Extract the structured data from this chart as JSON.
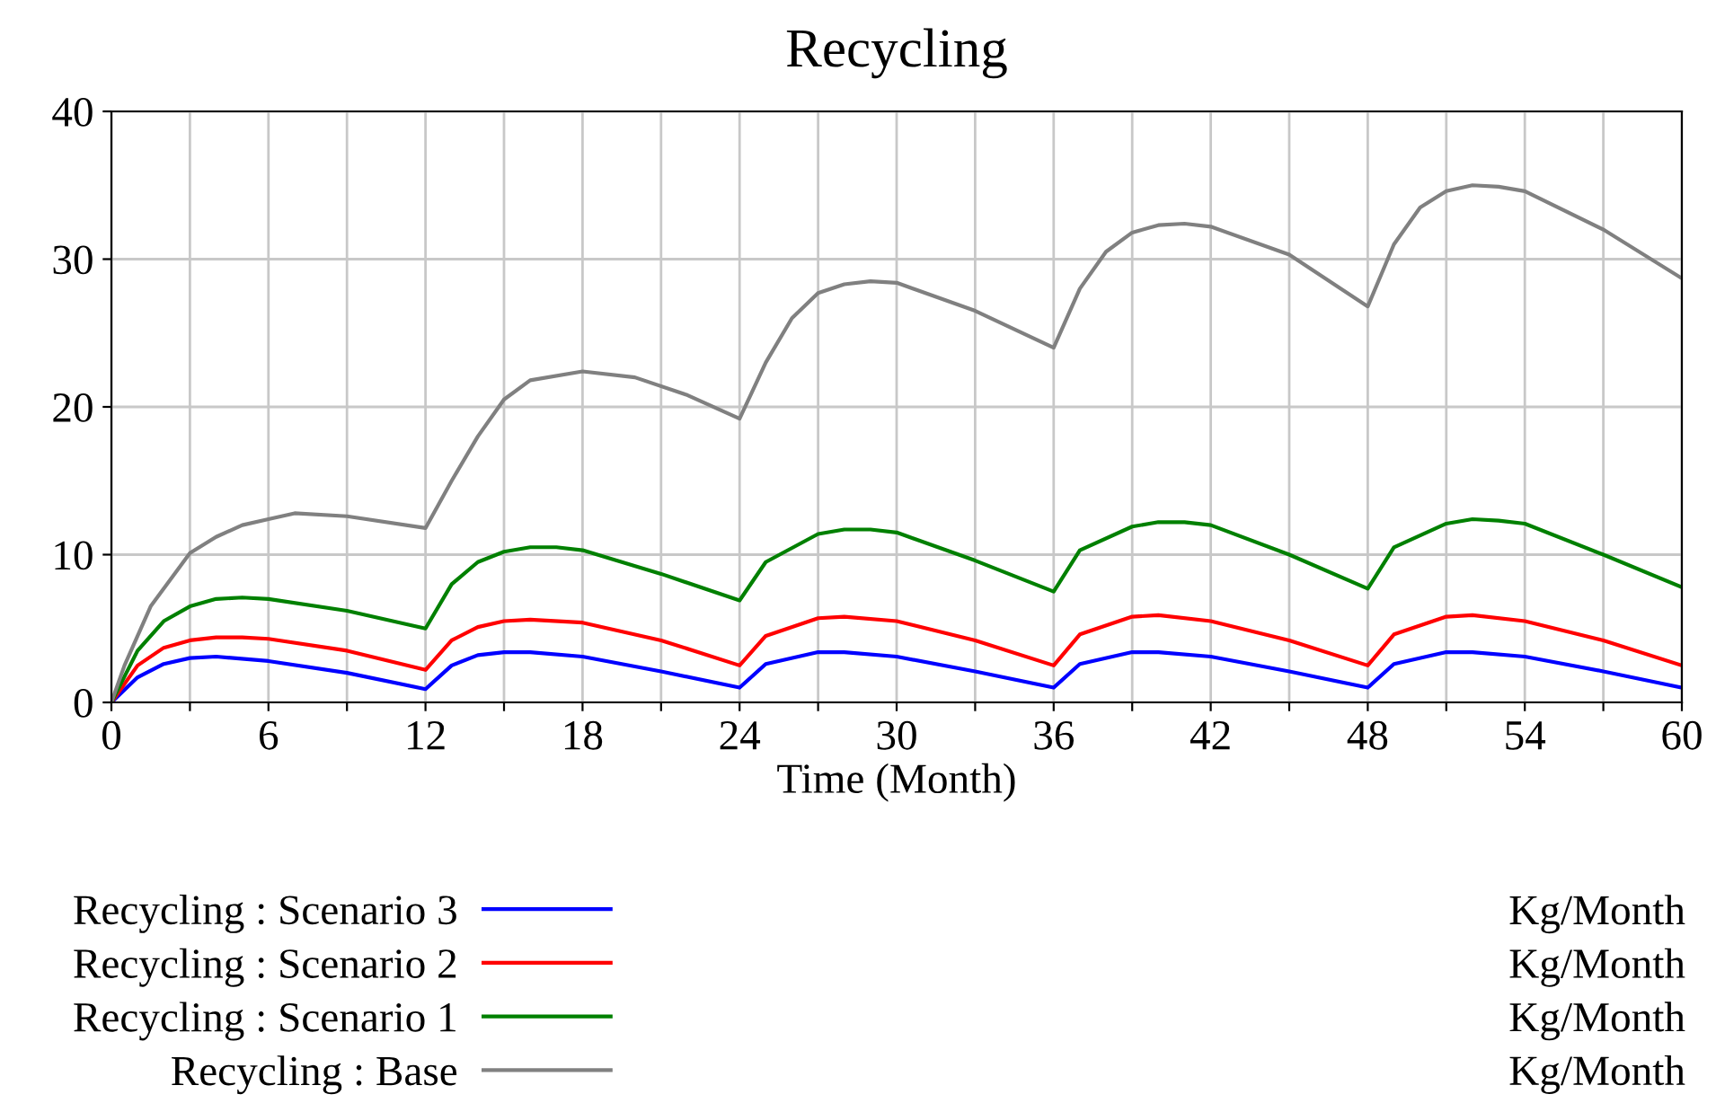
{
  "chart_data": {
    "type": "line",
    "title": "Recycling",
    "xlabel": "Time (Month)",
    "xlim": [
      0,
      60
    ],
    "ylim": [
      0,
      40
    ],
    "xticks": [
      0,
      {
        "value": 3,
        "label": null
      },
      6,
      {
        "value": 9,
        "label": null
      },
      12,
      {
        "value": 15,
        "label": null
      },
      18,
      {
        "value": 21,
        "label": null
      },
      24,
      {
        "value": 27,
        "label": null
      },
      30,
      {
        "value": 33,
        "label": null
      },
      36,
      {
        "value": 39,
        "label": null
      },
      42,
      {
        "value": 45,
        "label": null
      },
      48,
      {
        "value": 51,
        "label": null
      },
      54,
      {
        "value": 57,
        "label": null
      },
      60
    ],
    "yticks": [
      0,
      10,
      20,
      30,
      40
    ],
    "grid": true,
    "legend": "bottom",
    "marker": "none",
    "line_style": "solid",
    "annotations": [
      "Kg/Month",
      "Kg/Month",
      "Kg/Month",
      "Kg/Month"
    ],
    "series": [
      {
        "name": "Recycling : Scenario 3",
        "color": "#0000ff",
        "x": [
          0,
          1,
          2,
          3,
          4,
          6,
          9,
          12,
          13,
          14,
          15,
          16,
          18,
          21,
          24,
          25,
          27,
          28,
          30,
          33,
          36,
          37,
          39,
          40,
          42,
          45,
          48,
          49,
          51,
          52,
          54,
          57,
          60
        ],
        "values": [
          0,
          1.7,
          2.6,
          3.0,
          3.1,
          2.8,
          2.0,
          0.9,
          2.5,
          3.2,
          3.4,
          3.4,
          3.1,
          2.1,
          1.0,
          2.6,
          3.4,
          3.4,
          3.1,
          2.1,
          1.0,
          2.6,
          3.4,
          3.4,
          3.1,
          2.1,
          1.0,
          2.6,
          3.4,
          3.4,
          3.1,
          2.1,
          1.0
        ]
      },
      {
        "name": "Recycling : Scenario 2",
        "color": "#ff0000",
        "x": [
          0,
          1,
          2,
          3,
          4,
          5,
          6,
          9,
          12,
          13,
          14,
          15,
          16,
          18,
          21,
          24,
          25,
          27,
          28,
          30,
          33,
          36,
          37,
          39,
          40,
          42,
          45,
          48,
          49,
          51,
          52,
          54,
          57,
          60
        ],
        "values": [
          0,
          2.5,
          3.7,
          4.2,
          4.4,
          4.4,
          4.3,
          3.5,
          2.2,
          4.2,
          5.1,
          5.5,
          5.6,
          5.4,
          4.2,
          2.5,
          4.5,
          5.7,
          5.8,
          5.5,
          4.2,
          2.5,
          4.6,
          5.8,
          5.9,
          5.5,
          4.2,
          2.5,
          4.6,
          5.8,
          5.9,
          5.5,
          4.2,
          2.5
        ]
      },
      {
        "name": "Recycling : Scenario 1",
        "color": "#008000",
        "x": [
          0,
          1,
          2,
          3,
          4,
          5,
          6,
          9,
          12,
          13,
          14,
          15,
          16,
          17,
          18,
          21,
          24,
          25,
          27,
          28,
          29,
          30,
          33,
          36,
          37,
          39,
          40,
          41,
          42,
          45,
          48,
          49,
          51,
          52,
          53,
          54,
          57,
          60
        ],
        "values": [
          0,
          3.5,
          5.5,
          6.5,
          7.0,
          7.1,
          7.0,
          6.2,
          5.0,
          8.0,
          9.5,
          10.2,
          10.5,
          10.5,
          10.3,
          8.7,
          6.9,
          9.5,
          11.4,
          11.7,
          11.7,
          11.5,
          9.6,
          7.5,
          10.3,
          11.9,
          12.2,
          12.2,
          12.0,
          10.0,
          7.7,
          10.5,
          12.1,
          12.4,
          12.3,
          12.1,
          10.0,
          7.8
        ]
      },
      {
        "name": "Recycling : Base",
        "color": "#808080",
        "x": [
          0,
          0.5,
          1.5,
          3,
          4,
          5,
          6,
          7,
          9,
          12,
          13,
          14,
          15,
          16,
          18,
          20,
          22,
          24,
          25,
          26,
          27,
          28,
          29,
          30,
          33,
          36,
          37,
          38,
          39,
          40,
          41,
          42,
          45,
          48,
          49,
          50,
          51,
          52,
          53,
          54,
          57,
          60
        ],
        "values": [
          0,
          2.5,
          6.5,
          10.1,
          11.2,
          12.0,
          12.4,
          12.8,
          12.6,
          11.8,
          15.0,
          18.0,
          20.5,
          21.8,
          22.4,
          22.0,
          20.8,
          19.2,
          23.0,
          26.0,
          27.7,
          28.3,
          28.5,
          28.4,
          26.5,
          24.0,
          28.0,
          30.5,
          31.8,
          32.3,
          32.4,
          32.2,
          30.3,
          26.8,
          31.0,
          33.5,
          34.6,
          35.0,
          34.9,
          34.6,
          32.0,
          28.7
        ]
      }
    ]
  }
}
